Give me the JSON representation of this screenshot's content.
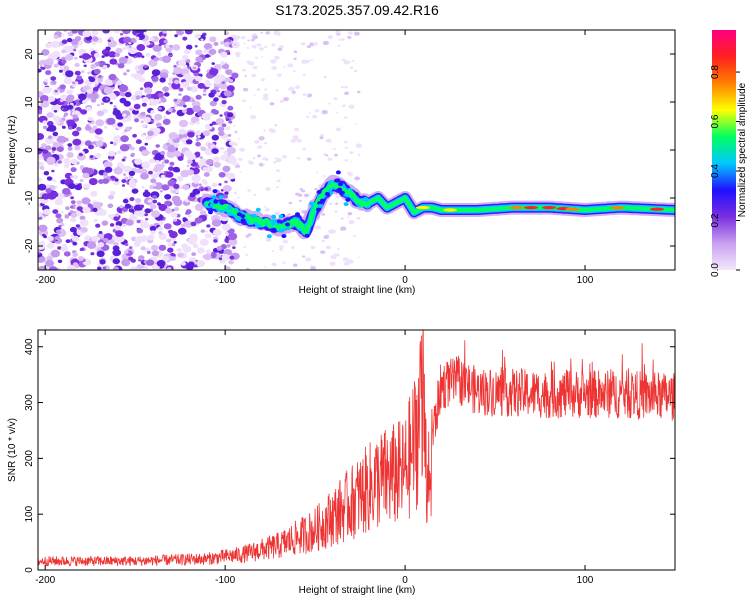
{
  "title": "S173.2025.357.09.42.R16",
  "chart_data": [
    {
      "type": "heatmap",
      "name": "spectrogram",
      "xlabel": "Height of straight line (km)",
      "ylabel": "Frequency (Hz)",
      "xlim": [
        -204,
        150
      ],
      "ylim": [
        -25,
        25
      ],
      "xticks": [
        "-200",
        "-100",
        "0",
        "100"
      ],
      "xtick_values": [
        -200,
        -100,
        0,
        100
      ],
      "yticks": [
        "-20",
        "-10",
        "0",
        "10",
        "20"
      ],
      "ytick_values": [
        -20,
        -10,
        0,
        10,
        20
      ],
      "colorbar": {
        "label": "Normalized spectral amplitude",
        "range": [
          0,
          0.97
        ],
        "ticks": [
          "0.0",
          "0.2",
          "0.4",
          "0.6",
          "0.8"
        ],
        "tick_values": [
          0.0,
          0.2,
          0.4,
          0.6,
          0.8
        ],
        "colors": [
          "#f4e8fb",
          "#c8a0f0",
          "#7a2fe0",
          "#2010ff",
          "#00c8ff",
          "#00ff60",
          "#ffff00",
          "#ff8000",
          "#ff2020",
          "#ff0080"
        ]
      },
      "ridge": {
        "x": [
          -110,
          -100,
          -90,
          -80,
          -70,
          -60,
          -55,
          -50,
          -45,
          -40,
          -35,
          -30,
          -25,
          -20,
          -15,
          -10,
          -5,
          0,
          5,
          10,
          15,
          20,
          40,
          60,
          80,
          100,
          120,
          150
        ],
        "y": [
          -11,
          -12,
          -14,
          -15,
          -16,
          -15,
          -17,
          -12,
          -9,
          -7,
          -8,
          -9,
          -11,
          -11,
          -10,
          -12,
          -11,
          -10,
          -13,
          -12,
          -12,
          -12.5,
          -12.5,
          -12,
          -12,
          -12.5,
          -12,
          -12.5
        ]
      }
    },
    {
      "type": "line",
      "name": "snr",
      "xlabel": "Height of straight line (km)",
      "ylabel": "SNR (10 * v/v)",
      "xlim": [
        -204,
        150
      ],
      "ylim": [
        0,
        430
      ],
      "xticks": [
        "-200",
        "-100",
        "0",
        "100"
      ],
      "xtick_values": [
        -200,
        -100,
        0,
        100
      ],
      "yticks": [
        "0",
        "100",
        "200",
        "300",
        "400"
      ],
      "ytick_values": [
        0,
        100,
        200,
        300,
        400
      ],
      "color": "#ee3333",
      "envelope": {
        "x": [
          -204,
          -150,
          -110,
          -90,
          -70,
          -50,
          -30,
          -15,
          0,
          5,
          10,
          12,
          20,
          30,
          40,
          80,
          120,
          150
        ],
        "y": [
          20,
          20,
          25,
          35,
          55,
          90,
          150,
          200,
          220,
          280,
          380,
          180,
          330,
          340,
          320,
          315,
          315,
          310
        ]
      }
    }
  ]
}
